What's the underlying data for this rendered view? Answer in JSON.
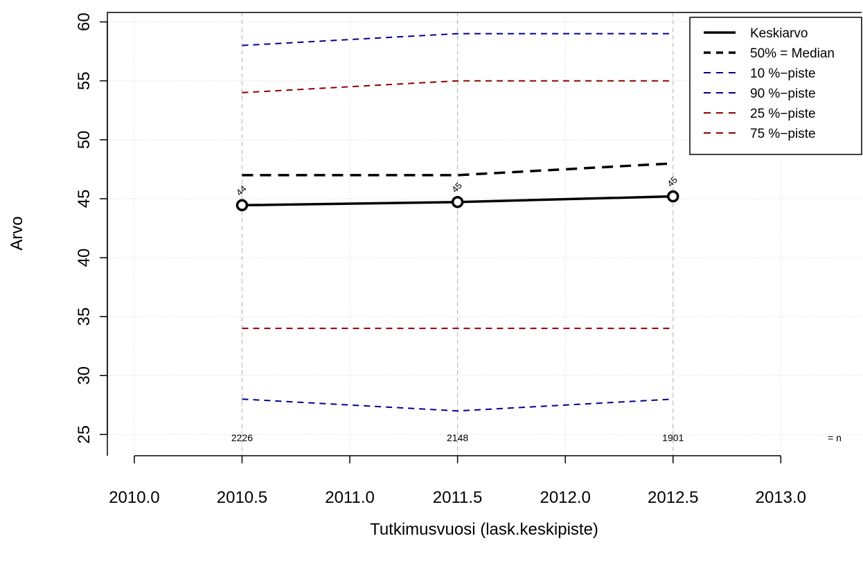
{
  "chart_data": {
    "type": "line",
    "xlabel": "Tutkimusvuosi (lask.keskipiste)",
    "ylabel": "Arvo",
    "xlim": [
      2009.875,
      2013.375
    ],
    "ylim": [
      23.2,
      60.8
    ],
    "x_ticks": [
      2010.0,
      2010.5,
      2011.0,
      2011.5,
      2012.0,
      2012.5,
      2013.0
    ],
    "x_tick_labels": [
      "2010.0",
      "2010.5",
      "2011.0",
      "2011.5",
      "2012.0",
      "2012.5",
      "2013.0"
    ],
    "y_ticks": [
      25,
      30,
      35,
      40,
      45,
      50,
      55,
      60
    ],
    "y_tick_labels": [
      "25",
      "30",
      "35",
      "40",
      "45",
      "50",
      "55",
      "60"
    ],
    "grid": true,
    "legend_position": "top-right",
    "x": [
      2010.5,
      2011.5,
      2012.5
    ],
    "series": [
      {
        "name": "Keskiarvo",
        "values": [
          44.45,
          44.72,
          45.2
        ],
        "color": "#000000",
        "style": "solid",
        "width": 3.5,
        "markers": true
      },
      {
        "name": "50% = Median",
        "values": [
          47,
          47,
          48
        ],
        "color": "#000000",
        "style": "dashed",
        "width": 3.5
      },
      {
        "name": "10 %−piste",
        "values": [
          28,
          27,
          28
        ],
        "color": "#00008B",
        "style": "dashed",
        "width": 2
      },
      {
        "name": "90 %−piste",
        "values": [
          58,
          59,
          59
        ],
        "color": "#00008B",
        "style": "dashed",
        "width": 2
      },
      {
        "name": "25 %−piste",
        "values": [
          34,
          34,
          34
        ],
        "color": "#8B0000",
        "style": "dashed",
        "width": 2
      },
      {
        "name": "75 %−piste",
        "values": [
          54,
          55,
          55
        ],
        "color": "#8B0000",
        "style": "dashed",
        "width": 2
      }
    ],
    "mean_labels": [
      "44",
      "45",
      "45"
    ],
    "n_values": [
      "2226",
      "2148",
      "1901"
    ],
    "n_label": "= n"
  }
}
